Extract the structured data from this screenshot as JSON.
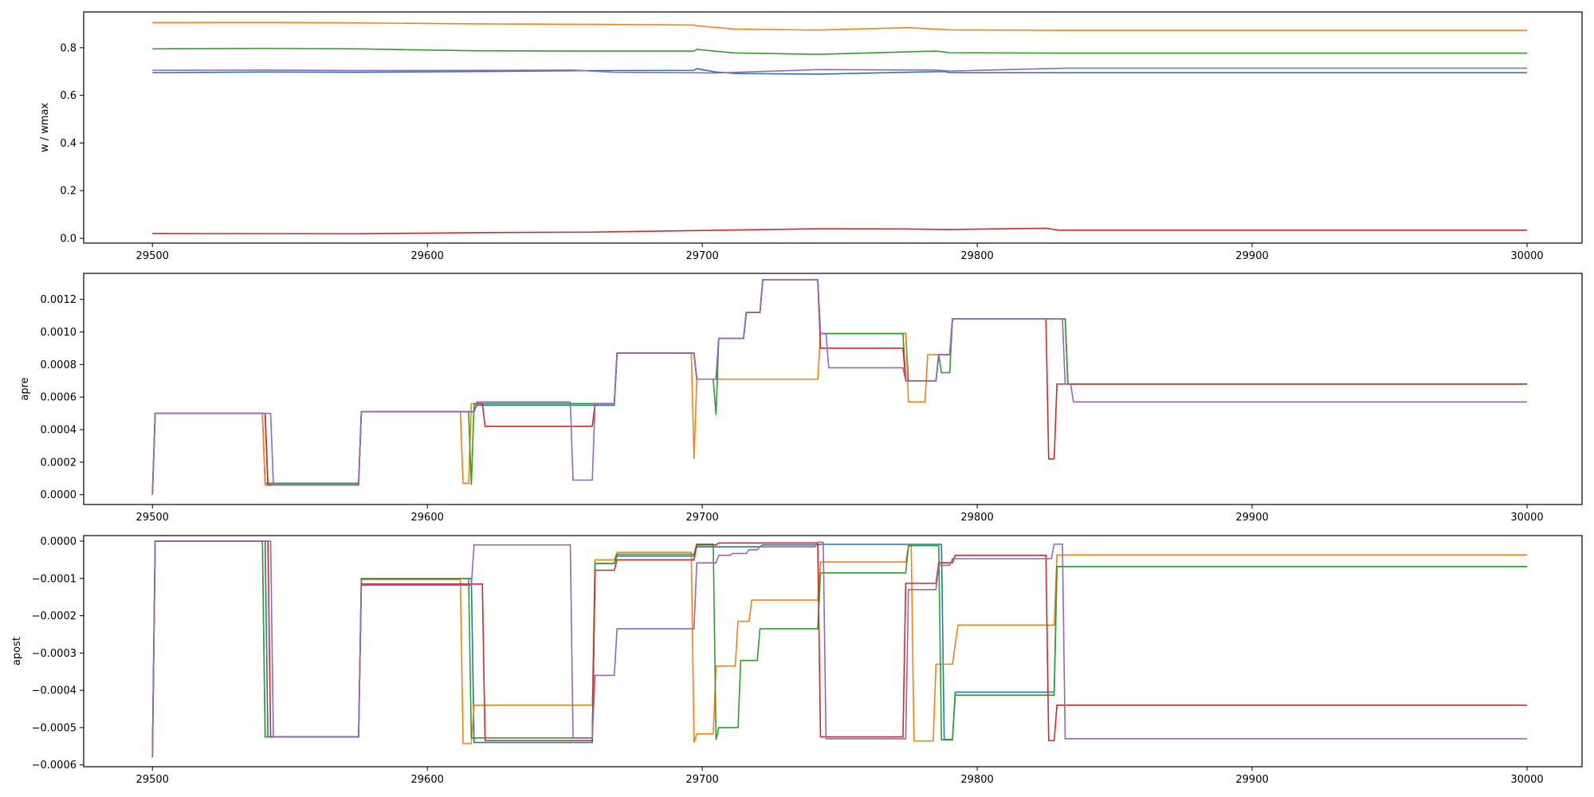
{
  "chart_data": [
    {
      "type": "line",
      "title": "",
      "xlabel": "",
      "ylabel": "w / wmax",
      "xlim": [
        29475,
        30020
      ],
      "ylim": [
        -0.02,
        0.95
      ],
      "xticks": [
        29500,
        29600,
        29700,
        29800,
        29900,
        30000
      ],
      "xtick_labels": [
        "29500",
        "29600",
        "29700",
        "29800",
        "29900",
        "30000"
      ],
      "yticks": [
        0.0,
        0.2,
        0.4,
        0.6,
        0.8
      ],
      "ytick_labels": [
        "0.0",
        "0.2",
        "0.4",
        "0.6",
        "0.8"
      ],
      "grid": false,
      "series": [
        {
          "color": "#1f77b4",
          "x": [
            29500,
            29540,
            29575,
            29617,
            29660,
            29697,
            29698,
            29705,
            29712,
            29742,
            29788,
            29790,
            29830,
            30000
          ],
          "y": [
            0.695,
            0.698,
            0.697,
            0.7,
            0.704,
            0.705,
            0.712,
            0.698,
            0.692,
            0.689,
            0.7,
            0.695,
            0.695,
            0.695
          ]
        },
        {
          "color": "#ff7f0e",
          "x": [
            29500,
            29540,
            29575,
            29617,
            29660,
            29697,
            29698,
            29705,
            29712,
            29742,
            29775,
            29783,
            29790,
            29830,
            30000
          ],
          "y": [
            0.905,
            0.906,
            0.904,
            0.9,
            0.898,
            0.895,
            0.892,
            0.885,
            0.878,
            0.874,
            0.884,
            0.879,
            0.875,
            0.873,
            0.873
          ]
        },
        {
          "color": "#2ca02c",
          "x": [
            29500,
            29540,
            29575,
            29617,
            29660,
            29697,
            29698,
            29705,
            29712,
            29742,
            29785,
            29790,
            29830,
            30000
          ],
          "y": [
            0.795,
            0.797,
            0.795,
            0.787,
            0.786,
            0.786,
            0.793,
            0.785,
            0.778,
            0.772,
            0.786,
            0.779,
            0.777,
            0.777
          ]
        },
        {
          "color": "#d62728",
          "x": [
            29500,
            29575,
            29621,
            29660,
            29742,
            29775,
            29790,
            29825,
            29830,
            30000
          ],
          "y": [
            0.02,
            0.019,
            0.024,
            0.026,
            0.04,
            0.039,
            0.037,
            0.042,
            0.034,
            0.034
          ]
        },
        {
          "color": "#9467bd",
          "x": [
            29500,
            29540,
            29575,
            29617,
            29653,
            29668,
            29705,
            29742,
            29785,
            29790,
            29832,
            30000
          ],
          "y": [
            0.705,
            0.706,
            0.704,
            0.705,
            0.706,
            0.697,
            0.694,
            0.708,
            0.706,
            0.702,
            0.714,
            0.714
          ]
        }
      ]
    },
    {
      "type": "line",
      "title": "",
      "xlabel": "",
      "ylabel": "apre",
      "xlim": [
        29475,
        30020
      ],
      "ylim": [
        -6e-05,
        0.00136
      ],
      "xticks": [
        29500,
        29600,
        29700,
        29800,
        29900,
        30000
      ],
      "xtick_labels": [
        "29500",
        "29600",
        "29700",
        "29800",
        "29900",
        "30000"
      ],
      "yticks": [
        0.0,
        0.0002,
        0.0004,
        0.0006,
        0.0008,
        0.001,
        0.0012
      ],
      "ytick_labels": [
        "0.0000",
        "0.0002",
        "0.0004",
        "0.0006",
        "0.0008",
        "0.0010",
        "0.0012"
      ],
      "grid": false,
      "series": [
        {
          "color": "#1f77b4",
          "x": [
            29500,
            29501,
            29540,
            29541,
            29575,
            29576,
            29617,
            29618,
            29668,
            29669,
            29697,
            29698,
            29705,
            29706,
            29715,
            29716,
            29721,
            29722,
            29742,
            29743,
            29774,
            29775,
            29785,
            29786,
            29790,
            29791,
            29832,
            29833,
            30000
          ],
          "y": [
            0.0,
            0.0005,
            0.0005,
            7e-05,
            7e-05,
            0.00051,
            0.00051,
            0.00055,
            0.00055,
            0.00087,
            0.00087,
            0.00071,
            0.00071,
            0.00096,
            0.00096,
            0.00112,
            0.00112,
            0.00132,
            0.00132,
            0.00099,
            0.00099,
            0.0007,
            0.0007,
            0.00086,
            0.00086,
            0.00108,
            0.00108,
            0.00068,
            0.00068
          ]
        },
        {
          "color": "#ff7f0e",
          "x": [
            29500,
            29501,
            29540,
            29541,
            29575,
            29576,
            29612,
            29613,
            29615,
            29616,
            29668,
            29669,
            29696,
            29697,
            29698,
            29742,
            29743,
            29774,
            29775,
            29781,
            29782,
            29790,
            29791,
            29832,
            29833,
            30000
          ],
          "y": [
            0.0,
            0.0005,
            0.0005,
            6e-05,
            6e-05,
            0.00051,
            0.00051,
            7e-05,
            7e-05,
            0.00056,
            0.00056,
            0.00087,
            0.00087,
            0.00022,
            0.00071,
            0.00071,
            0.00099,
            0.00099,
            0.00057,
            0.00057,
            0.00086,
            0.00086,
            0.00108,
            0.00108,
            0.00068,
            0.00068
          ]
        },
        {
          "color": "#2ca02c",
          "x": [
            29500,
            29501,
            29541,
            29542,
            29575,
            29576,
            29615,
            29616,
            29617,
            29668,
            29669,
            29697,
            29698,
            29704,
            29705,
            29706,
            29715,
            29716,
            29721,
            29722,
            29742,
            29743,
            29773,
            29774,
            29785,
            29786,
            29787,
            29790,
            29791,
            29832,
            29833,
            30000
          ],
          "y": [
            0.0,
            0.0005,
            0.0005,
            7e-05,
            7e-05,
            0.00051,
            0.00051,
            6e-05,
            0.00056,
            0.00056,
            0.00087,
            0.00087,
            0.00071,
            0.00071,
            0.00049,
            0.00096,
            0.00096,
            0.00112,
            0.00112,
            0.00132,
            0.00132,
            0.00099,
            0.00099,
            0.0007,
            0.0007,
            0.00086,
            0.00075,
            0.00075,
            0.00108,
            0.00108,
            0.00068,
            0.00068
          ]
        },
        {
          "color": "#d62728",
          "x": [
            29500,
            29501,
            29541,
            29542,
            29575,
            29576,
            29617,
            29618,
            29620,
            29621,
            29660,
            29661,
            29668,
            29669,
            29697,
            29698,
            29705,
            29706,
            29715,
            29716,
            29721,
            29722,
            29742,
            29743,
            29773,
            29774,
            29785,
            29786,
            29790,
            29791,
            29825,
            29826,
            29828,
            29829,
            30000
          ],
          "y": [
            0.0,
            0.0005,
            0.0005,
            6e-05,
            6e-05,
            0.00051,
            0.00051,
            0.00056,
            0.00056,
            0.00042,
            0.00042,
            0.00056,
            0.00056,
            0.00087,
            0.00087,
            0.00071,
            0.00071,
            0.00096,
            0.00096,
            0.00112,
            0.00112,
            0.00132,
            0.00132,
            0.0009,
            0.0009,
            0.0007,
            0.0007,
            0.00086,
            0.00086,
            0.00108,
            0.00108,
            0.00022,
            0.00022,
            0.00068,
            0.00068
          ]
        },
        {
          "color": "#9467bd",
          "x": [
            29500,
            29501,
            29543,
            29544,
            29575,
            29576,
            29617,
            29618,
            29652,
            29653,
            29660,
            29661,
            29668,
            29669,
            29697,
            29698,
            29705,
            29706,
            29715,
            29716,
            29721,
            29722,
            29742,
            29743,
            29745,
            29746,
            29773,
            29774,
            29785,
            29786,
            29790,
            29791,
            29831,
            29832,
            29834,
            29835,
            30000
          ],
          "y": [
            0.0,
            0.0005,
            0.0005,
            6e-05,
            6e-05,
            0.00051,
            0.00051,
            0.00057,
            0.00057,
            9e-05,
            9e-05,
            0.00056,
            0.00056,
            0.00087,
            0.00087,
            0.00071,
            0.00071,
            0.00096,
            0.00096,
            0.00112,
            0.00112,
            0.00132,
            0.00132,
            0.00099,
            0.00099,
            0.00078,
            0.00078,
            0.0007,
            0.0007,
            0.00086,
            0.00086,
            0.00108,
            0.00108,
            0.00068,
            0.00068,
            0.00057,
            0.00057
          ]
        }
      ]
    },
    {
      "type": "line",
      "title": "",
      "xlabel": "",
      "ylabel": "apost",
      "xlim": [
        29475,
        30020
      ],
      "ylim": [
        -0.000605,
        1.5e-05
      ],
      "xticks": [
        29500,
        29600,
        29700,
        29800,
        29900,
        30000
      ],
      "xtick_labels": [
        "29500",
        "29600",
        "29700",
        "29800",
        "29900",
        "30000"
      ],
      "yticks": [
        0.0,
        -0.0001,
        -0.0002,
        -0.0003,
        -0.0004,
        -0.0005,
        -0.0006
      ],
      "ytick_labels": [
        "0.0000",
        "−0.0001",
        "−0.0002",
        "−0.0003",
        "−0.0004",
        "−0.0005",
        "−0.0006"
      ],
      "grid": false,
      "series": [
        {
          "color": "#1f77b4",
          "x": [
            29500,
            29501,
            29541,
            29542,
            29575,
            29576,
            29616,
            29617,
            29618,
            29660,
            29661,
            29668,
            29669,
            29697,
            29698,
            29705,
            29706,
            29715,
            29716,
            29721,
            29722,
            29742,
            29743,
            29787,
            29788,
            29791,
            29792,
            29828,
            29829,
            29832,
            30000
          ],
          "y": [
            -0.00058,
            0.0,
            0.0,
            -0.000525,
            -0.000525,
            -0.0001,
            -0.0001,
            -0.00054,
            -0.00054,
            -0.00054,
            -6e-05,
            -6e-05,
            -4e-05,
            -4e-05,
            -1.5e-05,
            -1.5e-05,
            -1.5e-05,
            -1.5e-05,
            -1.5e-05,
            -1.5e-05,
            -1e-05,
            -1e-05,
            -8.5e-06,
            -8.5e-06,
            -0.000532,
            -0.000532,
            -0.000405,
            -0.000405,
            -6.8e-05,
            -6.8e-05,
            -6.8e-05
          ]
        },
        {
          "color": "#ff7f0e",
          "x": [
            29500,
            29501,
            29540,
            29541,
            29575,
            29576,
            29612,
            29613,
            29616,
            29617,
            29660,
            29661,
            29668,
            29669,
            29696,
            29697,
            29698,
            29704,
            29705,
            29712,
            29713,
            29717,
            29718,
            29733,
            29734,
            29742,
            29743,
            29774,
            29775,
            29776,
            29777,
            29784,
            29785,
            29790,
            29791,
            29793,
            29794,
            29828,
            29829,
            30000
          ],
          "y": [
            -0.00058,
            0.0,
            0.0,
            -0.000525,
            -0.000525,
            -0.000103,
            -0.000103,
            -0.000543,
            -0.000543,
            -0.00044,
            -0.00044,
            -5e-05,
            -5e-05,
            -3e-05,
            -3e-05,
            -0.00054,
            -0.000517,
            -0.000517,
            -0.000335,
            -0.000335,
            -0.000215,
            -0.000215,
            -0.000158,
            -0.000158,
            -0.000158,
            -0.000158,
            -5.6e-05,
            -5.6e-05,
            -1.3e-05,
            -1.3e-05,
            -0.000536,
            -0.000536,
            -0.00033,
            -0.00033,
            -0.00033,
            -0.000225,
            -0.000225,
            -0.000225,
            -3.7e-05,
            -3.7e-05
          ]
        },
        {
          "color": "#2ca02c",
          "x": [
            29500,
            29501,
            29540,
            29541,
            29575,
            29576,
            29615,
            29616,
            29617,
            29660,
            29661,
            29668,
            29669,
            29697,
            29698,
            29704,
            29705,
            29706,
            29713,
            29714,
            29720,
            29721,
            29742,
            29743,
            29774,
            29775,
            29786,
            29787,
            29791,
            29792,
            29828,
            29829,
            30000
          ],
          "y": [
            -0.00058,
            0.0,
            0.0,
            -0.000525,
            -0.000525,
            -0.0001,
            -0.0001,
            -0.000528,
            -0.000528,
            -0.000528,
            -6e-05,
            -6e-05,
            -3.5e-05,
            -3.5e-05,
            -8e-06,
            -8e-06,
            -0.000533,
            -0.0005,
            -0.0005,
            -0.00032,
            -0.00032,
            -0.000235,
            -0.000235,
            -8.5e-05,
            -8.5e-05,
            -1.2e-05,
            -1.2e-05,
            -0.000533,
            -0.000533,
            -0.000413,
            -0.000413,
            -6.8e-05,
            -6.8e-05
          ]
        },
        {
          "color": "#d62728",
          "x": [
            29500,
            29501,
            29542,
            29543,
            29575,
            29576,
            29620,
            29621,
            29660,
            29661,
            29668,
            29669,
            29697,
            29698,
            29705,
            29706,
            29742,
            29743,
            29773,
            29774,
            29785,
            29786,
            29791,
            29792,
            29825,
            29826,
            29828,
            29829,
            30000
          ],
          "y": [
            -0.000575,
            0.0,
            0.0,
            -0.000525,
            -0.000525,
            -0.000115,
            -0.000115,
            -0.000535,
            -0.000535,
            -7.8e-05,
            -7.8e-05,
            -5e-05,
            -5e-05,
            -1e-05,
            -1e-05,
            -5e-06,
            -5e-06,
            -0.000525,
            -0.000525,
            -0.000113,
            -0.000113,
            -5.8e-05,
            -5.8e-05,
            -3.8e-05,
            -3.8e-05,
            -0.000535,
            -0.000535,
            -0.00044,
            -0.00044
          ]
        },
        {
          "color": "#9467bd",
          "x": [
            29500,
            29501,
            29543,
            29544,
            29575,
            29576,
            29616,
            29617,
            29652,
            29653,
            29660,
            29661,
            29668,
            29669,
            29697,
            29698,
            29705,
            29706,
            29710,
            29711,
            29716,
            29717,
            29720,
            29721,
            29741,
            29742,
            29744,
            29745,
            29774,
            29775,
            29785,
            29786,
            29790,
            29791,
            29827,
            29828,
            29831,
            29832,
            30000
          ],
          "y": [
            -0.000575,
            0.0,
            0.0,
            -0.000525,
            -0.000525,
            -0.000118,
            -0.000118,
            -1e-05,
            -1e-05,
            -0.000528,
            -0.000528,
            -0.00036,
            -0.00036,
            -0.000235,
            -0.000235,
            -5.8e-05,
            -5.8e-05,
            -3.8e-05,
            -3.8e-05,
            -3.3e-05,
            -3.3e-05,
            -2.3e-05,
            -2.3e-05,
            -1.5e-05,
            -1.5e-05,
            -3e-06,
            -3e-06,
            -0.00053,
            -0.00053,
            -0.00013,
            -0.00013,
            -6.5e-05,
            -6.5e-05,
            -4.7e-05,
            -4.7e-05,
            -8e-06,
            -8e-06,
            -0.00053,
            -0.00053
          ]
        }
      ]
    }
  ]
}
